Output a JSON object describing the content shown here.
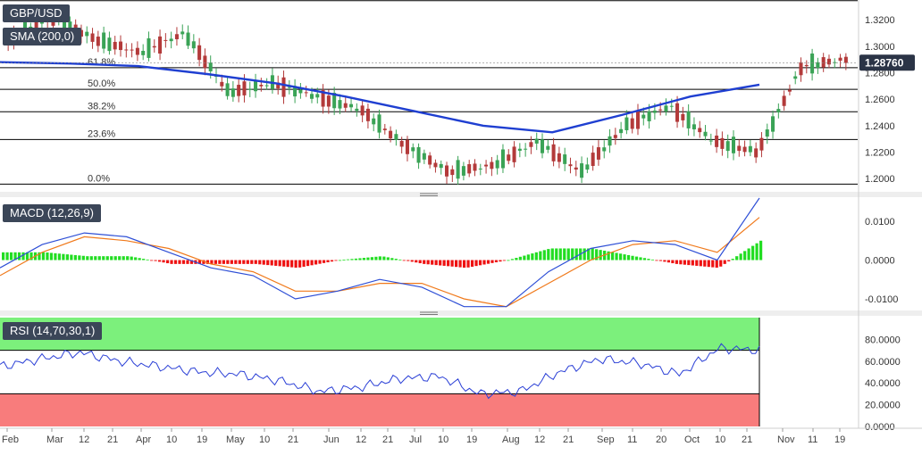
{
  "chart_data": [
    {
      "type": "candlestick",
      "symbol": "GBP/USD",
      "overlay_label": "SMA (200,0)",
      "last_price": 1.2876,
      "last_price_label": "1.28760",
      "ylim": [
        1.19,
        1.335
      ],
      "y_ticks": [
        1.2,
        1.22,
        1.24,
        1.26,
        1.28,
        1.3,
        1.32
      ],
      "y_tick_labels": [
        "1.2000",
        "1.2200",
        "1.2400",
        "1.2600",
        "1.2800",
        "1.3000",
        "1.3200"
      ],
      "fibonacci_levels": [
        {
          "label": "61.8%",
          "value": 1.2838
        },
        {
          "label": "50.0%",
          "value": 1.2675
        },
        {
          "label": "38.2%",
          "value": 1.2505
        },
        {
          "label": "23.6%",
          "value": 1.2295
        },
        {
          "label": "0.0%",
          "value": 1.1958
        }
      ],
      "top_reference_value": 1.3345,
      "sma_200": [
        1.288,
        1.287,
        1.285,
        1.279,
        1.272,
        1.262,
        1.251,
        1.24,
        1.235,
        1.248,
        1.262,
        1.271
      ],
      "colors": {
        "up": "#3aa356",
        "down": "#b33a3a",
        "sma": "#1f3fd1",
        "line": "#000000"
      }
    },
    {
      "type": "line",
      "indicator_label": "MACD (12,26,9)",
      "ylim": [
        -0.013,
        0.016
      ],
      "y_ticks": [
        0.01,
        0.0,
        -0.01
      ],
      "y_tick_labels": [
        "0.0100",
        "0.0000",
        "-0.0100"
      ],
      "macd": [
        -0.002,
        0.004,
        0.007,
        0.006,
        0.002,
        -0.002,
        -0.004,
        -0.01,
        -0.008,
        -0.005,
        -0.007,
        -0.012,
        -0.012,
        -0.003,
        0.003,
        0.005,
        0.004,
        0.0,
        0.016
      ],
      "signal": [
        -0.004,
        0.002,
        0.006,
        0.005,
        0.003,
        -0.001,
        -0.003,
        -0.008,
        -0.008,
        -0.006,
        -0.006,
        -0.01,
        -0.012,
        -0.006,
        0.0,
        0.004,
        0.005,
        0.002,
        0.011
      ],
      "colors": {
        "macd": "#2e4fd6",
        "signal": "#f07a1c",
        "hist_up": "#22dd22",
        "hist_down": "#ee1111"
      }
    },
    {
      "type": "line",
      "indicator_label": "RSI (14,70,30,1)",
      "ylim": [
        0,
        100
      ],
      "y_ticks": [
        80,
        60,
        40,
        20,
        0
      ],
      "y_tick_labels": [
        "80.0000",
        "60.0000",
        "40.0000",
        "20.0000",
        "0.0000"
      ],
      "overbought": 70,
      "oversold": 30,
      "rsi": [
        55,
        62,
        68,
        60,
        55,
        50,
        48,
        42,
        32,
        36,
        44,
        46,
        30,
        32,
        50,
        62,
        58,
        48,
        72,
        70
      ],
      "colors": {
        "line": "#2a3fd6",
        "overbought_zone": "#7cf07c",
        "oversold_zone": "#f87c7c"
      }
    }
  ],
  "x_axis": {
    "labels": [
      "Feb",
      "Mar",
      "12",
      "21",
      "Apr",
      "10",
      "19",
      "May",
      "10",
      "21",
      "Jun",
      "12",
      "21",
      "Jul",
      "10",
      "19",
      "Aug",
      "12",
      "21",
      "Sep",
      "11",
      "20",
      "Oct",
      "10",
      "21",
      "Nov",
      "11",
      "19"
    ]
  }
}
